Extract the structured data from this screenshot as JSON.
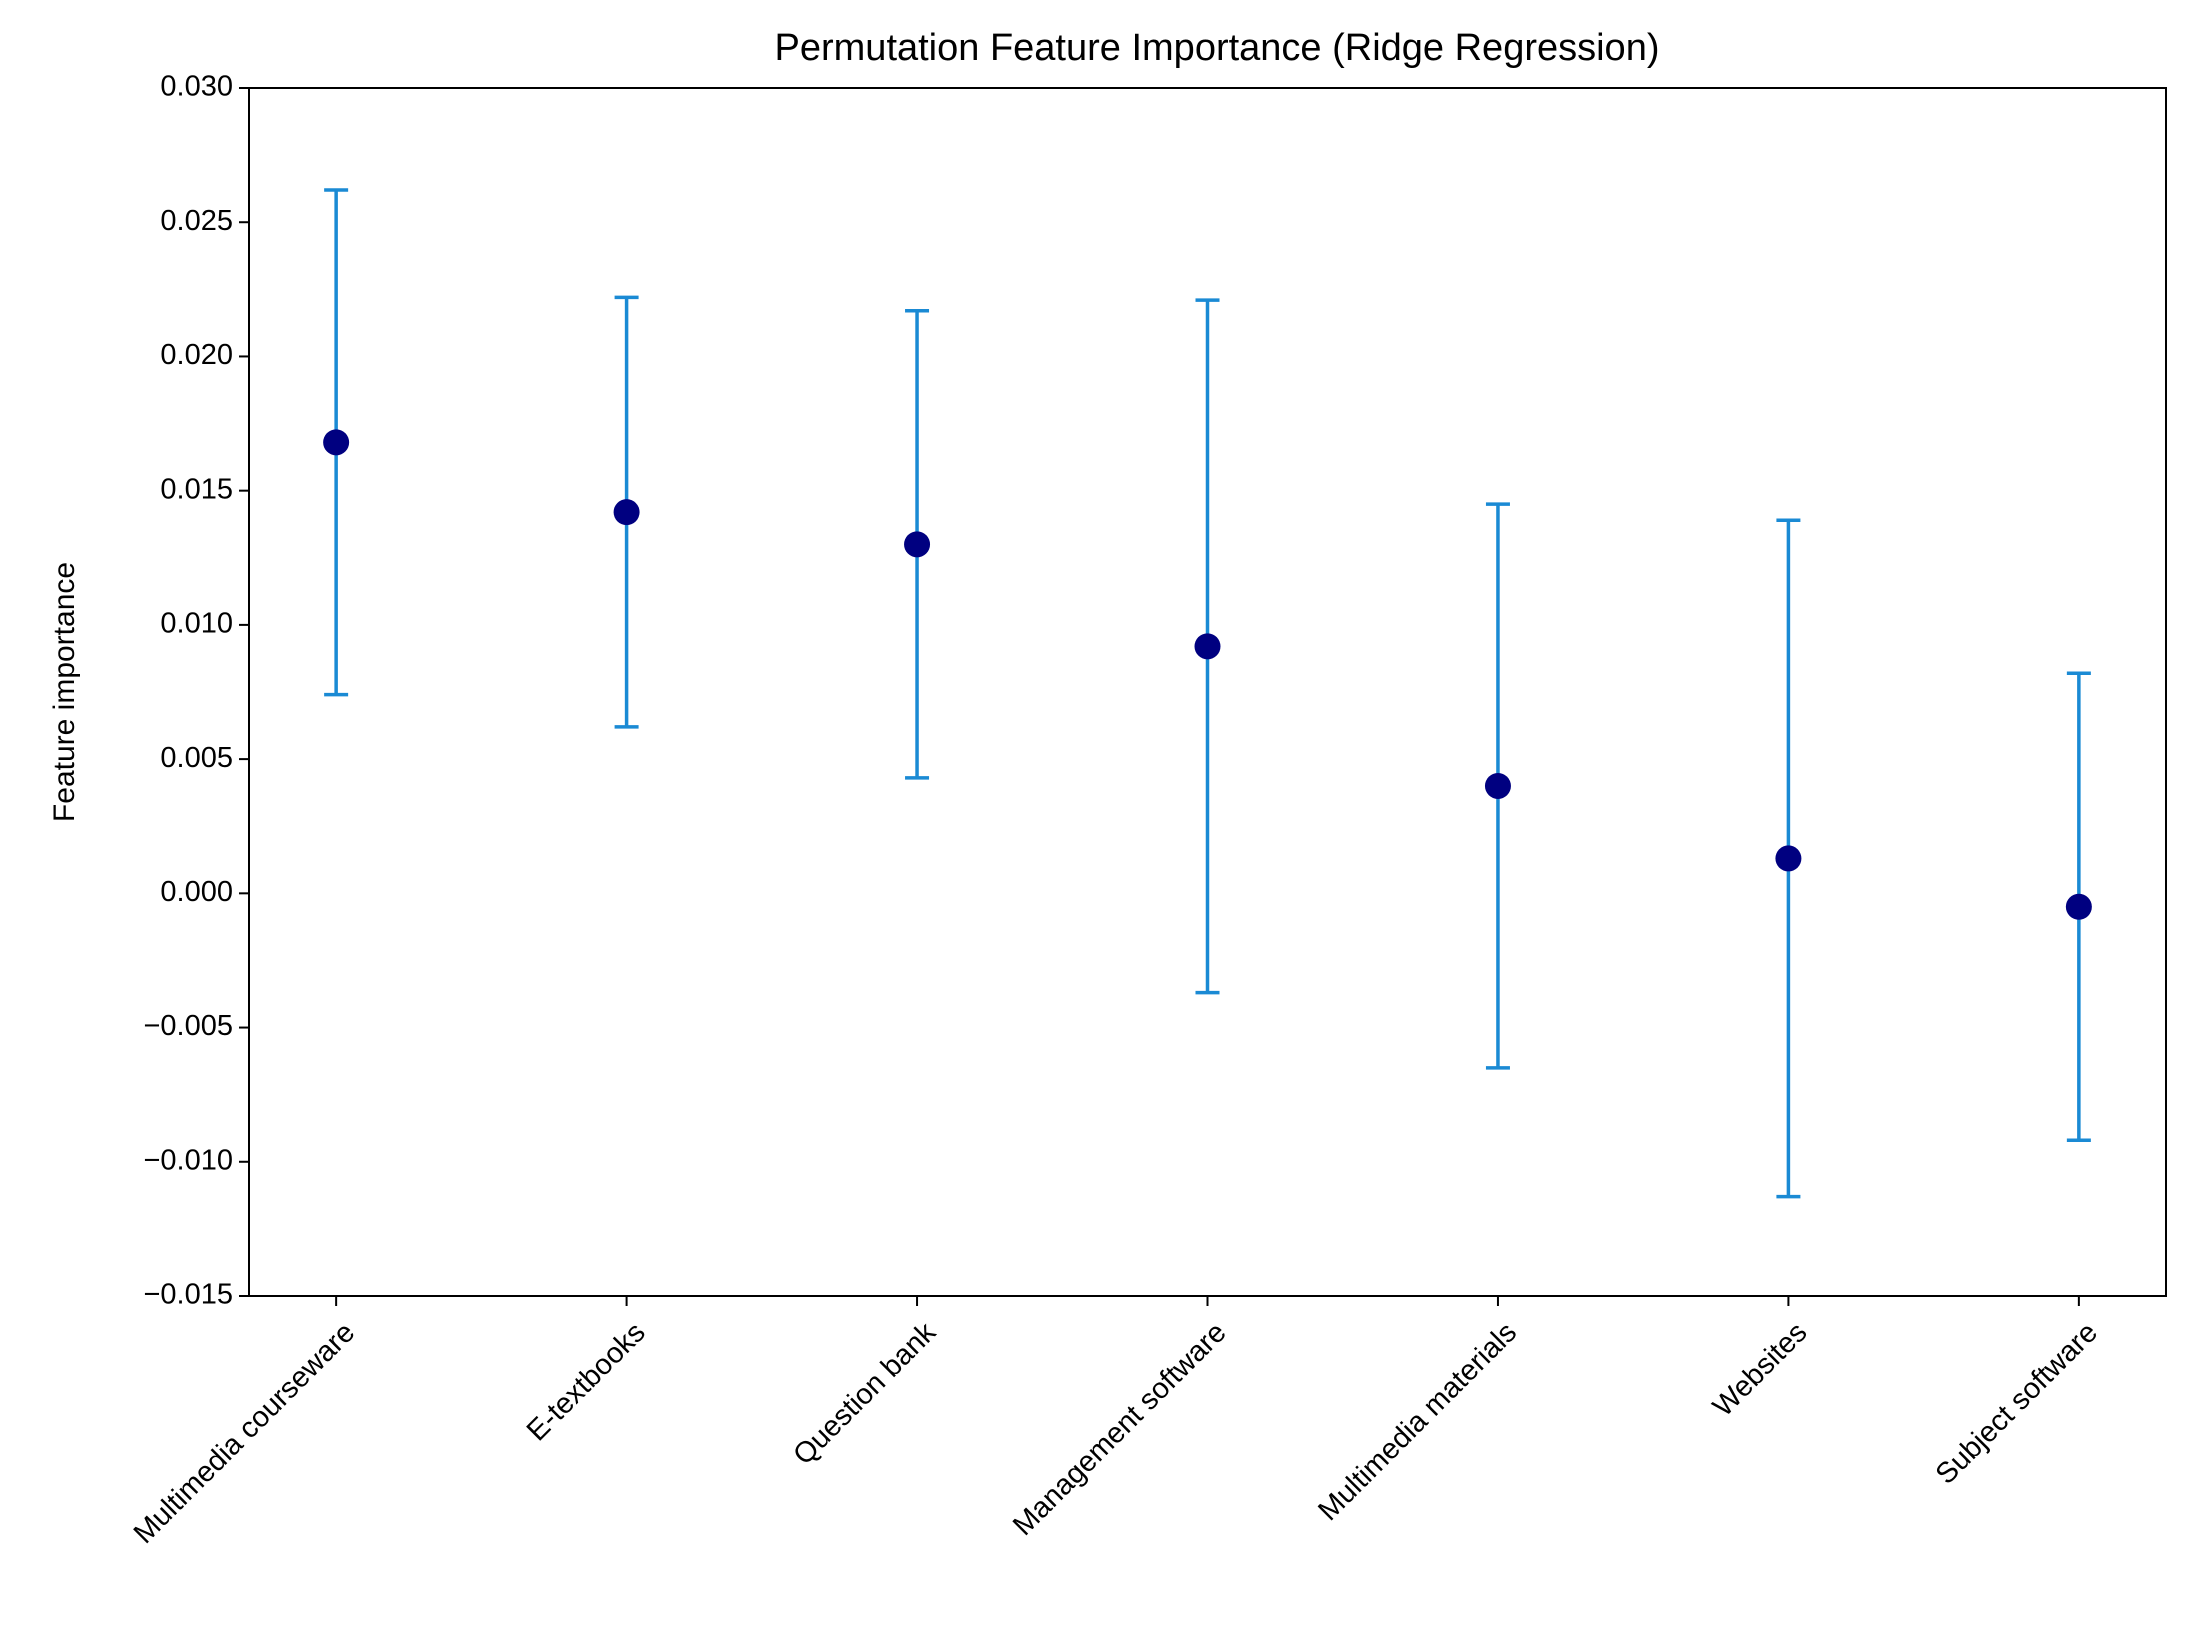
{
  "chart_data": {
    "type": "errorbar",
    "title": "Permutation Feature Importance (Ridge Regression)",
    "y_label": "Feature importance",
    "categories": [
      "Multimedia courseware",
      "E-textbooks",
      "Question bank",
      "Management software",
      "Multimedia materials",
      "Websites",
      "Subject software"
    ],
    "values": [
      0.0168,
      0.0142,
      0.013,
      0.0092,
      0.004,
      0.0013,
      -0.0005
    ],
    "errors": [
      0.0094,
      0.008,
      0.0087,
      0.0129,
      0.0105,
      0.0126,
      0.0087
    ],
    "color": "#000080",
    "error_color": "#1a8ad4",
    "ylim": [
      -0.015,
      0.03
    ],
    "yticks": [
      {
        "value": -0.015,
        "label": "−0.015"
      },
      {
        "value": -0.01,
        "label": "−0.010"
      },
      {
        "value": -0.005,
        "label": "−0.005"
      },
      {
        "value": 0.0,
        "label": "0.000"
      },
      {
        "value": 0.005,
        "label": "0.005"
      },
      {
        "value": 0.01,
        "label": "0.010"
      },
      {
        "value": 0.015,
        "label": "0.015"
      },
      {
        "value": 0.02,
        "label": "0.020"
      },
      {
        "value": 0.025,
        "label": "0.025"
      },
      {
        "value": 0.03,
        "label": "0.030"
      }
    ],
    "grid": false
  }
}
